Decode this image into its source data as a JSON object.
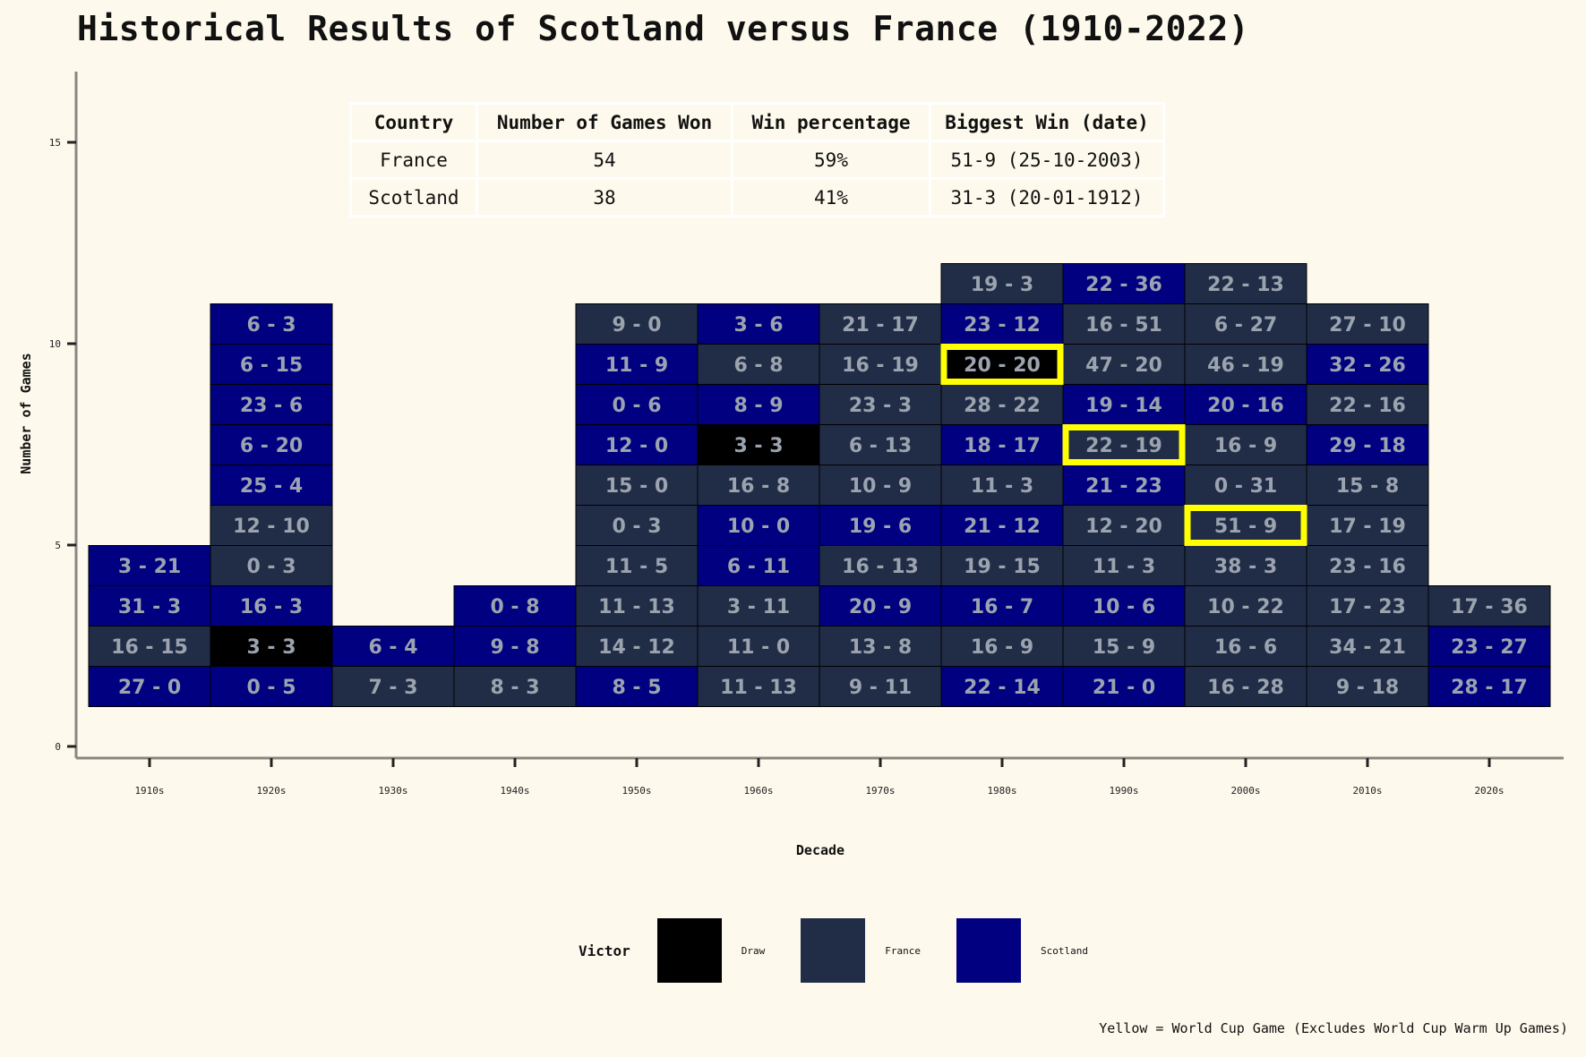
{
  "title": "Historical Results of Scotland versus France (1910-2022)",
  "summary_table": {
    "headers": [
      "Country",
      "Number of Games Won",
      "Win percentage",
      "Biggest Win (date)"
    ],
    "rows": [
      [
        "France",
        "54",
        "59%",
        "51-9 (25-10-2003)"
      ],
      [
        "Scotland",
        "38",
        "41%",
        "31-3 (20-01-1912)"
      ]
    ]
  },
  "legend": {
    "title": "Victor",
    "items": [
      {
        "label": "Draw",
        "color": "#000000"
      },
      {
        "label": "France",
        "color": "#212d47"
      },
      {
        "label": "Scotland",
        "color": "#000080"
      }
    ]
  },
  "footnote": "Yellow = World Cup Game (Excludes World Cup Warm Up Games)",
  "chart_data": {
    "type": "heatmap",
    "xlabel": "Decade",
    "ylabel": "Number of Games",
    "ylim": [
      0,
      16
    ],
    "yticks": [
      0,
      5,
      10,
      15
    ],
    "categories": [
      "1910s",
      "1920s",
      "1930s",
      "1940s",
      "1950s",
      "1960s",
      "1970s",
      "1980s",
      "1990s",
      "2000s",
      "2010s",
      "2020s"
    ],
    "colors": {
      "Draw": "#000000",
      "France": "#212d47",
      "Scotland": "#000080",
      "world_cup": "#ffff00"
    },
    "games": [
      {
        "decade": "1910s",
        "n": 1,
        "score": "27 - 0",
        "victor": "Scotland"
      },
      {
        "decade": "1910s",
        "n": 2,
        "score": "16 - 15",
        "victor": "France"
      },
      {
        "decade": "1910s",
        "n": 3,
        "score": "31 - 3",
        "victor": "Scotland"
      },
      {
        "decade": "1910s",
        "n": 4,
        "score": "3 - 21",
        "victor": "Scotland"
      },
      {
        "decade": "1920s",
        "n": 1,
        "score": "0 - 5",
        "victor": "Scotland"
      },
      {
        "decade": "1920s",
        "n": 2,
        "score": "3 - 3",
        "victor": "Draw"
      },
      {
        "decade": "1920s",
        "n": 3,
        "score": "16 - 3",
        "victor": "Scotland"
      },
      {
        "decade": "1920s",
        "n": 4,
        "score": "0 - 3",
        "victor": "France"
      },
      {
        "decade": "1920s",
        "n": 5,
        "score": "12 - 10",
        "victor": "France"
      },
      {
        "decade": "1920s",
        "n": 6,
        "score": "25 - 4",
        "victor": "Scotland"
      },
      {
        "decade": "1920s",
        "n": 7,
        "score": "6 - 20",
        "victor": "Scotland"
      },
      {
        "decade": "1920s",
        "n": 8,
        "score": "23 - 6",
        "victor": "Scotland"
      },
      {
        "decade": "1920s",
        "n": 9,
        "score": "6 - 15",
        "victor": "Scotland"
      },
      {
        "decade": "1920s",
        "n": 10,
        "score": "6 - 3",
        "victor": "Scotland"
      },
      {
        "decade": "1930s",
        "n": 1,
        "score": "7 - 3",
        "victor": "France"
      },
      {
        "decade": "1930s",
        "n": 2,
        "score": "6 - 4",
        "victor": "Scotland"
      },
      {
        "decade": "1940s",
        "n": 1,
        "score": "8 - 3",
        "victor": "France"
      },
      {
        "decade": "1940s",
        "n": 2,
        "score": "9 - 8",
        "victor": "Scotland"
      },
      {
        "decade": "1940s",
        "n": 3,
        "score": "0 - 8",
        "victor": "Scotland"
      },
      {
        "decade": "1950s",
        "n": 1,
        "score": "8 - 5",
        "victor": "Scotland"
      },
      {
        "decade": "1950s",
        "n": 2,
        "score": "14 - 12",
        "victor": "France"
      },
      {
        "decade": "1950s",
        "n": 3,
        "score": "11 - 13",
        "victor": "France"
      },
      {
        "decade": "1950s",
        "n": 4,
        "score": "11 - 5",
        "victor": "France"
      },
      {
        "decade": "1950s",
        "n": 5,
        "score": "0 - 3",
        "victor": "France"
      },
      {
        "decade": "1950s",
        "n": 6,
        "score": "15 - 0",
        "victor": "France"
      },
      {
        "decade": "1950s",
        "n": 7,
        "score": "12 - 0",
        "victor": "Scotland"
      },
      {
        "decade": "1950s",
        "n": 8,
        "score": "0 - 6",
        "victor": "Scotland"
      },
      {
        "decade": "1950s",
        "n": 9,
        "score": "11 - 9",
        "victor": "Scotland"
      },
      {
        "decade": "1950s",
        "n": 10,
        "score": "9 - 0",
        "victor": "France"
      },
      {
        "decade": "1960s",
        "n": 1,
        "score": "11 - 13",
        "victor": "France"
      },
      {
        "decade": "1960s",
        "n": 2,
        "score": "11 - 0",
        "victor": "France"
      },
      {
        "decade": "1960s",
        "n": 3,
        "score": "3 - 11",
        "victor": "France"
      },
      {
        "decade": "1960s",
        "n": 4,
        "score": "6 - 11",
        "victor": "Scotland"
      },
      {
        "decade": "1960s",
        "n": 5,
        "score": "10 - 0",
        "victor": "Scotland"
      },
      {
        "decade": "1960s",
        "n": 6,
        "score": "16 - 8",
        "victor": "France"
      },
      {
        "decade": "1960s",
        "n": 7,
        "score": "3 - 3",
        "victor": "Draw"
      },
      {
        "decade": "1960s",
        "n": 8,
        "score": "8 - 9",
        "victor": "Scotland"
      },
      {
        "decade": "1960s",
        "n": 9,
        "score": "6 - 8",
        "victor": "France"
      },
      {
        "decade": "1960s",
        "n": 10,
        "score": "3 - 6",
        "victor": "Scotland"
      },
      {
        "decade": "1970s",
        "n": 1,
        "score": "9 - 11",
        "victor": "France"
      },
      {
        "decade": "1970s",
        "n": 2,
        "score": "13 - 8",
        "victor": "France"
      },
      {
        "decade": "1970s",
        "n": 3,
        "score": "20 - 9",
        "victor": "Scotland"
      },
      {
        "decade": "1970s",
        "n": 4,
        "score": "16 - 13",
        "victor": "France"
      },
      {
        "decade": "1970s",
        "n": 5,
        "score": "19 - 6",
        "victor": "Scotland"
      },
      {
        "decade": "1970s",
        "n": 6,
        "score": "10 - 9",
        "victor": "France"
      },
      {
        "decade": "1970s",
        "n": 7,
        "score": "6 - 13",
        "victor": "France"
      },
      {
        "decade": "1970s",
        "n": 8,
        "score": "23 - 3",
        "victor": "France"
      },
      {
        "decade": "1970s",
        "n": 9,
        "score": "16 - 19",
        "victor": "France"
      },
      {
        "decade": "1970s",
        "n": 10,
        "score": "21 - 17",
        "victor": "France"
      },
      {
        "decade": "1980s",
        "n": 1,
        "score": "22 - 14",
        "victor": "Scotland"
      },
      {
        "decade": "1980s",
        "n": 2,
        "score": "16 - 9",
        "victor": "France"
      },
      {
        "decade": "1980s",
        "n": 3,
        "score": "16 - 7",
        "victor": "Scotland"
      },
      {
        "decade": "1980s",
        "n": 4,
        "score": "19 - 15",
        "victor": "France"
      },
      {
        "decade": "1980s",
        "n": 5,
        "score": "21 - 12",
        "victor": "Scotland"
      },
      {
        "decade": "1980s",
        "n": 6,
        "score": "11 - 3",
        "victor": "France"
      },
      {
        "decade": "1980s",
        "n": 7,
        "score": "18 - 17",
        "victor": "Scotland"
      },
      {
        "decade": "1980s",
        "n": 8,
        "score": "28 - 22",
        "victor": "France"
      },
      {
        "decade": "1980s",
        "n": 9,
        "score": "20 - 20",
        "victor": "Draw",
        "world_cup": true
      },
      {
        "decade": "1980s",
        "n": 10,
        "score": "23 - 12",
        "victor": "Scotland"
      },
      {
        "decade": "1980s",
        "n": 11,
        "score": "19 - 3",
        "victor": "France"
      },
      {
        "decade": "1990s",
        "n": 1,
        "score": "21 - 0",
        "victor": "Scotland"
      },
      {
        "decade": "1990s",
        "n": 2,
        "score": "15 - 9",
        "victor": "France"
      },
      {
        "decade": "1990s",
        "n": 3,
        "score": "10 - 6",
        "victor": "Scotland"
      },
      {
        "decade": "1990s",
        "n": 4,
        "score": "11 - 3",
        "victor": "France"
      },
      {
        "decade": "1990s",
        "n": 5,
        "score": "12 - 20",
        "victor": "France"
      },
      {
        "decade": "1990s",
        "n": 6,
        "score": "21 - 23",
        "victor": "Scotland"
      },
      {
        "decade": "1990s",
        "n": 7,
        "score": "22 - 19",
        "victor": "France",
        "world_cup": true
      },
      {
        "decade": "1990s",
        "n": 8,
        "score": "19 - 14",
        "victor": "Scotland"
      },
      {
        "decade": "1990s",
        "n": 9,
        "score": "47 - 20",
        "victor": "France"
      },
      {
        "decade": "1990s",
        "n": 10,
        "score": "16 - 51",
        "victor": "France"
      },
      {
        "decade": "1990s",
        "n": 11,
        "score": "22 - 36",
        "victor": "Scotland"
      },
      {
        "decade": "2000s",
        "n": 1,
        "score": "16 - 28",
        "victor": "France"
      },
      {
        "decade": "2000s",
        "n": 2,
        "score": "16 - 6",
        "victor": "France"
      },
      {
        "decade": "2000s",
        "n": 3,
        "score": "10 - 22",
        "victor": "France"
      },
      {
        "decade": "2000s",
        "n": 4,
        "score": "38 - 3",
        "victor": "France"
      },
      {
        "decade": "2000s",
        "n": 5,
        "score": "51 - 9",
        "victor": "France",
        "world_cup": true
      },
      {
        "decade": "2000s",
        "n": 6,
        "score": "0 - 31",
        "victor": "France"
      },
      {
        "decade": "2000s",
        "n": 7,
        "score": "16 - 9",
        "victor": "France"
      },
      {
        "decade": "2000s",
        "n": 8,
        "score": "20 - 16",
        "victor": "Scotland"
      },
      {
        "decade": "2000s",
        "n": 9,
        "score": "46 - 19",
        "victor": "France"
      },
      {
        "decade": "2000s",
        "n": 10,
        "score": "6 - 27",
        "victor": "France"
      },
      {
        "decade": "2000s",
        "n": 11,
        "score": "22 - 13",
        "victor": "France"
      },
      {
        "decade": "2010s",
        "n": 1,
        "score": "9 - 18",
        "victor": "France"
      },
      {
        "decade": "2010s",
        "n": 2,
        "score": "34 - 21",
        "victor": "France"
      },
      {
        "decade": "2010s",
        "n": 3,
        "score": "17 - 23",
        "victor": "France"
      },
      {
        "decade": "2010s",
        "n": 4,
        "score": "23 - 16",
        "victor": "France"
      },
      {
        "decade": "2010s",
        "n": 5,
        "score": "17 - 19",
        "victor": "France"
      },
      {
        "decade": "2010s",
        "n": 6,
        "score": "15 - 8",
        "victor": "France"
      },
      {
        "decade": "2010s",
        "n": 7,
        "score": "29 - 18",
        "victor": "Scotland"
      },
      {
        "decade": "2010s",
        "n": 8,
        "score": "22 - 16",
        "victor": "France"
      },
      {
        "decade": "2010s",
        "n": 9,
        "score": "32 - 26",
        "victor": "Scotland"
      },
      {
        "decade": "2010s",
        "n": 10,
        "score": "27 - 10",
        "victor": "France"
      },
      {
        "decade": "2020s",
        "n": 1,
        "score": "28 - 17",
        "victor": "Scotland"
      },
      {
        "decade": "2020s",
        "n": 2,
        "score": "23 - 27",
        "victor": "Scotland"
      },
      {
        "decade": "2020s",
        "n": 3,
        "score": "17 - 36",
        "victor": "France"
      }
    ]
  }
}
